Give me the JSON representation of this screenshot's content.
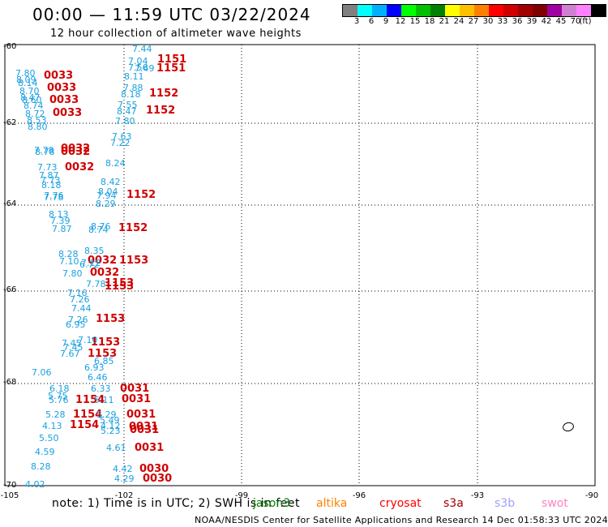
{
  "title": "00:00 — 11:59 UTC 03/22/2024",
  "subtitle": "12 hour collection of altimeter wave heights",
  "colorbar": {
    "unit": "(ft)",
    "colors": [
      "#808080",
      "#00ffff",
      "#00b0ff",
      "#0000ff",
      "#00ff00",
      "#00c000",
      "#008000",
      "#ffff00",
      "#ffc000",
      "#ff8000",
      "#ff0000",
      "#d00000",
      "#a00000",
      "#800000",
      "#a000a0",
      "#d080d0",
      "#ff80ff",
      "#000000"
    ],
    "labels": [
      "3",
      "6",
      "9",
      "12",
      "15",
      "18",
      "21",
      "24",
      "27",
      "30",
      "33",
      "36",
      "39",
      "42",
      "45",
      "70"
    ]
  },
  "axes": {
    "y_ticks": [
      "-60",
      "-62",
      "-64",
      "-66",
      "-68",
      "-70"
    ],
    "x_ticks": [
      "-105",
      "-102",
      "-99",
      "-96",
      "-93",
      "-90"
    ]
  },
  "passes": [
    {
      "label": "1151"
    },
    {
      "label": "1151"
    },
    {
      "label": "1152"
    },
    {
      "label": "1152"
    },
    {
      "label": "0033"
    },
    {
      "label": "0033"
    },
    {
      "label": "0033"
    },
    {
      "label": "0033"
    },
    {
      "label": "0032"
    },
    {
      "label": "0032"
    },
    {
      "label": "0032"
    },
    {
      "label": "1152"
    },
    {
      "label": "1152"
    },
    {
      "label": "0032"
    },
    {
      "label": "1153"
    },
    {
      "label": "0032"
    },
    {
      "label": "1153"
    },
    {
      "label": "1153"
    },
    {
      "label": "1153"
    },
    {
      "label": "1153"
    },
    {
      "label": "1153"
    },
    {
      "label": "0031"
    },
    {
      "label": "1154"
    },
    {
      "label": "0031"
    },
    {
      "label": "1154"
    },
    {
      "label": "0031"
    },
    {
      "label": "1154"
    },
    {
      "label": "0031"
    },
    {
      "label": "0031"
    },
    {
      "label": "0031"
    },
    {
      "label": "0030"
    },
    {
      "label": "0030"
    }
  ],
  "values": [
    "7.44",
    "7.04",
    "7.56",
    "7.49",
    "8.11",
    "7.88",
    "8.18",
    "7.55",
    "8.47",
    "7.80",
    "7.80",
    "8.09",
    "8.14",
    "8.70",
    "8.47",
    "8.60",
    "8.74",
    "8.72",
    "8.53",
    "8.80",
    "7.63",
    "7.22",
    "7.78",
    "8.78",
    "8.24",
    "7.73",
    "7.87",
    "7.73",
    "8.18",
    "7.76",
    "7.78",
    "8.42",
    "8.04",
    "7.94",
    "8.29",
    "8.13",
    "7.39",
    "7.87",
    "8.76",
    "8.74",
    "8.35",
    "8.28",
    "7.10",
    "7.12",
    "6.72",
    "7.80",
    "7.78",
    "7.16",
    "7.26",
    "7.44",
    "7.26",
    "6.95",
    "7.10",
    "7.45",
    "7.45",
    "7.67",
    "6.85",
    "6.93",
    "7.06",
    "6.46",
    "6.33",
    "6.18",
    "5.75",
    "5.76",
    "5.11",
    "5.28",
    "5.29",
    "5.49",
    "4.12",
    "5.23",
    "4.13",
    "5.50",
    "4.61",
    "4.59",
    "8.28",
    "4.42",
    "4.29",
    "4.02"
  ],
  "note": "note:  1) Time is in UTC;  2) SWH is in feet",
  "legend": [
    {
      "name": "jason3",
      "color": "#008000"
    },
    {
      "name": "altika",
      "color": "#ff8000"
    },
    {
      "name": "cryosat",
      "color": "#ff0000"
    },
    {
      "name": "s3a",
      "color": "#a00000"
    },
    {
      "name": "s3b",
      "color": "#a0a0ff"
    },
    {
      "name": "swot",
      "color": "#ff80c0"
    }
  ],
  "credit": "NOAA/NESDIS Center for Satellite Applications and Research    14 Dec 01:58:33 UTC 2024"
}
